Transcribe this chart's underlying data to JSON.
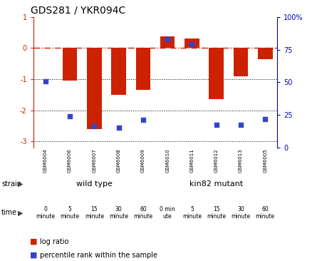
{
  "title": "GDS281 / YKR094C",
  "samples": [
    "GSM6004",
    "GSM6006",
    "GSM6007",
    "GSM6008",
    "GSM6009",
    "GSM6010",
    "GSM6011",
    "GSM6012",
    "GSM6013",
    "GSM6005"
  ],
  "log_ratio": [
    0.0,
    -1.05,
    -2.6,
    -1.5,
    -1.35,
    0.38,
    0.3,
    -1.65,
    -0.9,
    -0.35
  ],
  "percentile": [
    48,
    20,
    12,
    11,
    17,
    82,
    78,
    13,
    13,
    18
  ],
  "bar_color": "#cc2200",
  "dot_color": "#3344cc",
  "ylim_left": [
    -3.2,
    1.0
  ],
  "dotted_lines": [
    -1,
    -2,
    -3
  ],
  "strain_labels": [
    "wild type",
    "kin82 mutant"
  ],
  "strain_color_wt": "#99ee99",
  "strain_color_km": "#44dd44",
  "time_labels": [
    "0\nminute",
    "5\nminute",
    "15\nminute",
    "30\nminute",
    "60\nminute",
    "0 min\nute",
    "5\nminute",
    "15\nminute",
    "30\nminute",
    "60\nminute"
  ],
  "time_colors": [
    "#ffffff",
    "#ff88ff",
    "#ee22ee",
    "#cc00cc",
    "#aa00aa",
    "#ffffff",
    "#ff88ff",
    "#ee22ee",
    "#cc00cc",
    "#aa00aa"
  ],
  "bg_color": "#ffffff",
  "right_axis_color": "#0000bb",
  "gsm_bg": "#cccccc"
}
